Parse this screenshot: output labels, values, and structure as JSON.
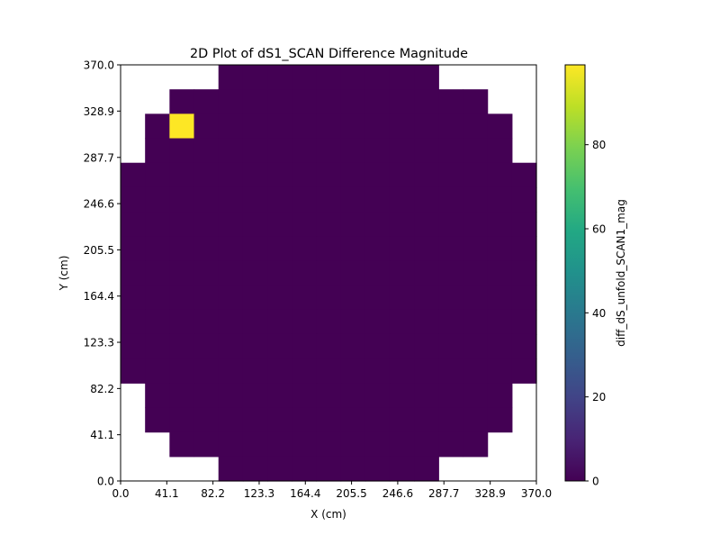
{
  "chart_data": {
    "type": "heatmap",
    "title": "2D Plot of dS1_SCAN Difference Magnitude",
    "xlabel": "X (cm)",
    "ylabel": "Y (cm)",
    "xlim": [
      0.0,
      370.0
    ],
    "ylim": [
      0.0,
      370.0
    ],
    "x_ticks": [
      "0.0",
      "41.1",
      "82.2",
      "123.3",
      "164.4",
      "205.5",
      "246.6",
      "287.7",
      "328.9",
      "370.0"
    ],
    "y_ticks": [
      "0.0",
      "41.1",
      "82.2",
      "123.3",
      "164.4",
      "205.5",
      "246.6",
      "287.7",
      "328.9",
      "370.0"
    ],
    "grid_size": 17,
    "row_order": "top-to-bottom",
    "cells": [
      [
        null,
        null,
        null,
        null,
        0,
        0,
        0,
        0,
        0,
        0,
        0,
        0,
        0,
        null,
        null,
        null,
        null
      ],
      [
        null,
        null,
        0,
        0,
        0,
        0,
        0,
        0,
        0,
        0,
        0,
        0,
        0,
        0,
        0,
        null,
        null
      ],
      [
        null,
        0,
        99,
        0,
        0,
        0,
        0,
        0,
        0,
        0,
        0,
        0,
        0,
        0,
        0,
        0,
        null
      ],
      [
        null,
        0,
        0,
        0,
        0,
        0,
        0,
        0,
        0,
        0,
        0,
        0,
        0,
        0,
        0,
        0,
        null
      ],
      [
        0,
        0,
        0,
        0,
        0,
        0,
        0,
        0,
        0,
        0,
        0,
        0,
        0,
        0,
        0,
        0,
        0
      ],
      [
        0,
        0,
        0,
        0,
        0,
        0,
        0,
        0,
        0,
        0,
        0,
        0,
        0,
        0,
        0,
        0,
        0
      ],
      [
        0,
        0,
        0,
        0,
        0,
        0,
        0,
        0,
        0,
        0,
        0,
        0,
        0,
        0,
        0,
        0,
        0
      ],
      [
        0,
        0,
        0,
        0,
        0,
        0,
        0,
        0,
        0,
        0,
        0,
        0,
        0,
        0,
        0,
        0,
        0
      ],
      [
        0,
        0,
        0,
        0,
        0,
        0,
        0,
        0,
        0,
        0,
        0,
        0,
        0,
        0,
        0,
        0,
        0
      ],
      [
        0,
        0,
        0,
        0,
        0,
        0,
        0,
        0,
        0,
        0,
        0,
        0,
        0,
        0,
        0,
        0,
        0
      ],
      [
        0,
        0,
        0,
        0,
        0,
        0,
        0,
        0,
        0,
        0,
        0,
        0,
        0,
        0,
        0,
        0,
        0
      ],
      [
        0,
        0,
        0,
        0,
        0,
        0,
        0,
        0,
        0,
        0,
        0,
        0,
        0,
        0,
        0,
        0,
        0
      ],
      [
        0,
        0,
        0,
        0,
        0,
        0,
        0,
        0,
        0,
        0,
        0,
        0,
        0,
        0,
        0,
        0,
        0
      ],
      [
        null,
        0,
        0,
        0,
        0,
        0,
        0,
        0,
        0,
        0,
        0,
        0,
        0,
        0,
        0,
        0,
        null
      ],
      [
        null,
        0,
        0,
        0,
        0,
        0,
        0,
        0,
        0,
        0,
        0,
        0,
        0,
        0,
        0,
        0,
        null
      ],
      [
        null,
        null,
        0,
        0,
        0,
        0,
        0,
        0,
        0,
        0,
        0,
        0,
        0,
        0,
        0,
        null,
        null
      ],
      [
        null,
        null,
        null,
        null,
        0,
        0,
        0,
        0,
        0,
        0,
        0,
        0,
        0,
        null,
        null,
        null,
        null
      ]
    ],
    "colorbar": {
      "label": "diff_dS_unfold_SCAN1_mag",
      "colormap": "viridis",
      "vmin": 0,
      "vmax": 99,
      "ticks": [
        "0",
        "20",
        "40",
        "60",
        "80"
      ]
    },
    "colors": {
      "low": "#440154",
      "high": "#fde725"
    }
  }
}
